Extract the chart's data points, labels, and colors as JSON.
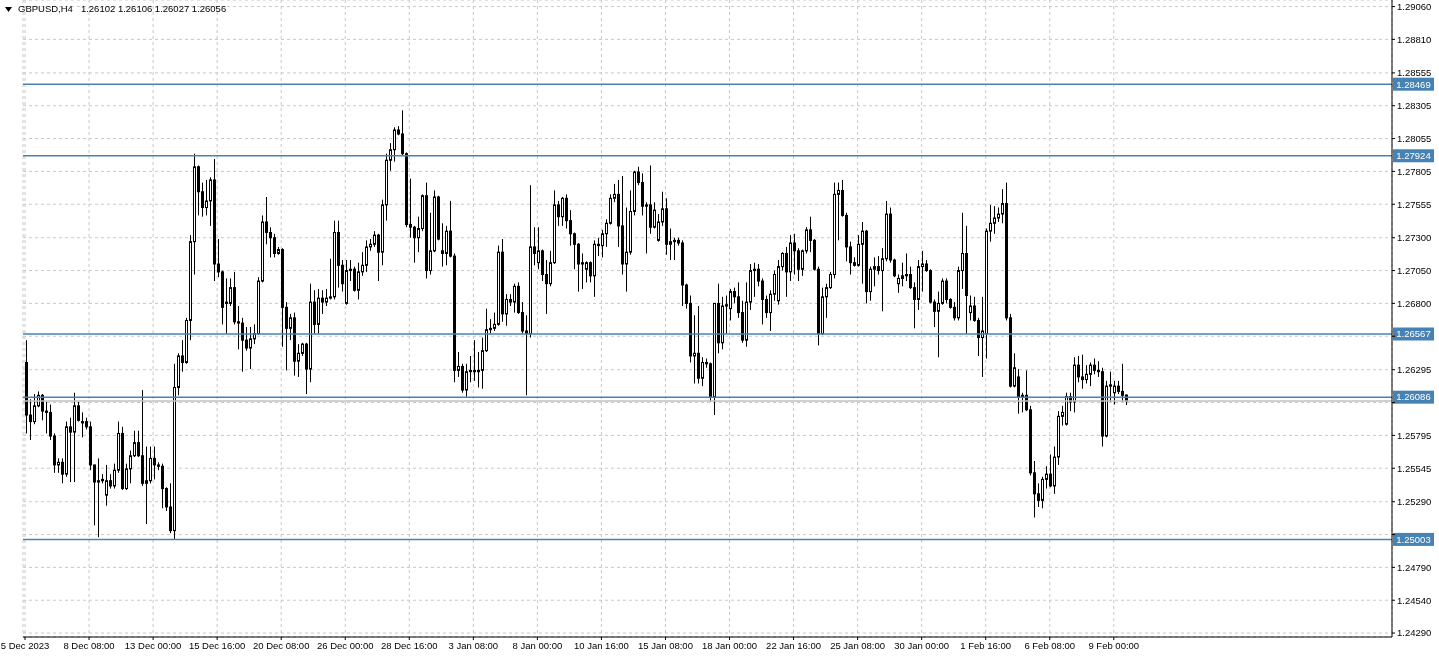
{
  "chart_data": {
    "type": "candlestick",
    "title": "GBPUSD,H4",
    "subtitle": "1.26102 1.26106 1.26027 1.26056",
    "color": "#000000",
    "categories": [
      "5 Dec 2023",
      null,
      null,
      null,
      null,
      null,
      null,
      null,
      null,
      null,
      null,
      null,
      null,
      null,
      null,
      null,
      "8 Dec 08:00",
      null,
      null,
      null,
      null,
      null,
      null,
      null,
      null,
      null,
      null,
      null,
      null,
      null,
      null,
      null,
      "13 Dec 00:00",
      null,
      null,
      null,
      null,
      null,
      null,
      null,
      null,
      null,
      null,
      null,
      null,
      null,
      null,
      null,
      "15 Dec 16:00",
      null,
      null,
      null,
      null,
      null,
      null,
      null,
      null,
      null,
      null,
      null,
      null,
      null,
      null,
      null,
      "20 Dec 08:00",
      null,
      null,
      null,
      null,
      null,
      null,
      null,
      null,
      null,
      null,
      null,
      null,
      null,
      null,
      null,
      "26 Dec 00:00",
      null,
      null,
      null,
      null,
      null,
      null,
      null,
      null,
      null,
      null,
      null,
      null,
      null,
      null,
      null,
      "28 Dec 16:00",
      null,
      null,
      null,
      null,
      null,
      null,
      null,
      null,
      null,
      null,
      null,
      null,
      null,
      null,
      null,
      "3 Jan 08:00",
      null,
      null,
      null,
      null,
      null,
      null,
      null,
      null,
      null,
      null,
      null,
      null,
      null,
      null,
      null,
      "8 Jan 00:00",
      null,
      null,
      null,
      null,
      null,
      null,
      null,
      null,
      null,
      null,
      null,
      null,
      null,
      null,
      null,
      "10 Jan 16:00",
      null,
      null,
      null,
      null,
      null,
      null,
      null,
      null,
      null,
      null,
      null,
      null,
      null,
      null,
      null,
      "15 Jan 08:00",
      null,
      null,
      null,
      null,
      null,
      null,
      null,
      null,
      null,
      null,
      null,
      null,
      null,
      null,
      null,
      "18 Jan 00:00",
      null,
      null,
      null,
      null,
      null,
      null,
      null,
      null,
      null,
      null,
      null,
      null,
      null,
      null,
      null,
      "22 Jan 16:00",
      null,
      null,
      null,
      null,
      null,
      null,
      null,
      null,
      null,
      null,
      null,
      null,
      null,
      null,
      null,
      "25 Jan 08:00",
      null,
      null,
      null,
      null,
      null,
      null,
      null,
      null,
      null,
      null,
      null,
      null,
      null,
      null,
      null,
      "30 Jan 00:00",
      null,
      null,
      null,
      null,
      null,
      null,
      null,
      null,
      null,
      null,
      null,
      null,
      null,
      null,
      null,
      "1 Feb 16:00",
      null,
      null,
      null,
      null,
      null,
      null,
      null,
      null,
      null,
      null,
      null,
      null,
      null,
      null,
      null,
      "6 Feb 08:00",
      null,
      null,
      null,
      null,
      null,
      null,
      null,
      null,
      null,
      null,
      null,
      null,
      null,
      null,
      null,
      "9 Feb 00:00",
      null,
      null,
      null,
      null,
      null,
      null,
      null,
      null,
      null,
      null,
      null,
      null,
      null,
      null,
      null,
      null,
      null,
      null,
      null,
      null,
      null,
      null,
      null,
      null,
      null,
      null,
      null,
      null,
      null,
      null,
      null,
      null,
      null,
      null,
      null,
      null,
      null,
      null,
      null,
      null,
      null,
      null,
      null,
      null,
      null,
      null,
      null,
      null,
      null,
      null,
      null,
      null,
      null,
      null,
      null,
      null,
      null,
      null,
      null,
      null,
      null,
      null,
      null,
      null,
      null,
      null,
      null,
      null,
      null
    ],
    "ohlc": [
      [
        1.2635,
        1.2652,
        1.2581,
        1.2595
      ],
      [
        1.2595,
        1.2607,
        1.2576,
        1.259
      ],
      [
        1.259,
        1.2611,
        1.2588,
        1.2602
      ],
      [
        1.2602,
        1.2613,
        1.2601,
        1.261
      ],
      [
        1.261,
        1.2611,
        1.2591,
        1.2598
      ],
      [
        1.2598,
        1.2605,
        1.2581,
        1.2597
      ],
      [
        1.2597,
        1.2603,
        1.2576,
        1.2579
      ],
      [
        1.2579,
        1.2581,
        1.2551,
        1.2557
      ],
      [
        1.2557,
        1.2562,
        1.2551,
        1.2559
      ],
      [
        1.2559,
        1.2562,
        1.2543,
        1.255
      ],
      [
        1.255,
        1.259,
        1.2548,
        1.2586
      ],
      [
        1.2586,
        1.2593,
        1.2544,
        1.2582
      ],
      [
        1.2582,
        1.2612,
        1.2544,
        1.2602
      ],
      [
        1.2602,
        1.2605,
        1.259,
        1.2591
      ],
      [
        1.2589,
        1.2597,
        1.2578,
        1.259
      ],
      [
        1.259,
        1.2593,
        1.2584,
        1.2586
      ],
      [
        1.2586,
        1.259,
        1.2553,
        1.2557
      ],
      [
        1.2557,
        1.2557,
        1.2511,
        1.2544
      ],
      [
        1.2544,
        1.2562,
        1.2502,
        1.2545
      ],
      [
        1.2545,
        1.255,
        1.2543,
        1.2546
      ],
      [
        1.2534,
        1.2557,
        1.2526,
        1.2545
      ],
      [
        1.2545,
        1.255,
        1.2539,
        1.2541
      ],
      [
        1.2541,
        1.2558,
        1.2539,
        1.2553
      ],
      [
        1.2553,
        1.259,
        1.2551,
        1.2581
      ],
      [
        1.2581,
        1.2586,
        1.2538,
        1.2539
      ],
      [
        1.2539,
        1.2558,
        1.2538,
        1.2554
      ],
      [
        1.2554,
        1.2568,
        1.2543,
        1.2564
      ],
      [
        1.2564,
        1.2583,
        1.2563,
        1.2574
      ],
      [
        1.2574,
        1.2583,
        1.2563,
        1.2564
      ],
      [
        1.2564,
        1.2614,
        1.2541,
        1.2543
      ],
      [
        1.2543,
        1.2571,
        1.2512,
        1.2545
      ],
      [
        1.2545,
        1.2571,
        1.2543,
        1.2562
      ],
      [
        1.2562,
        1.2571,
        1.2546,
        1.2557
      ],
      [
        1.2557,
        1.2559,
        1.2553,
        1.2556
      ],
      [
        1.2556,
        1.2558,
        1.2524,
        1.2539
      ],
      [
        1.2539,
        1.254,
        1.2522,
        1.2525
      ],
      [
        1.2525,
        1.2543,
        1.2505,
        1.2507
      ],
      [
        1.2507,
        1.2634,
        1.25,
        1.2616
      ],
      [
        1.2616,
        1.2642,
        1.261,
        1.264
      ],
      [
        1.264,
        1.2652,
        1.2628,
        1.2635
      ],
      [
        1.2635,
        1.2669,
        1.2634,
        1.2667
      ],
      [
        1.2667,
        1.2732,
        1.2652,
        1.2727
      ],
      [
        1.2727,
        1.2794,
        1.2702,
        1.2784
      ],
      [
        1.2784,
        1.2785,
        1.2747,
        1.2765
      ],
      [
        1.2765,
        1.2772,
        1.2746,
        1.2753
      ],
      [
        1.2753,
        1.2774,
        1.2747,
        1.2758
      ],
      [
        1.2758,
        1.2776,
        1.2739,
        1.2774
      ],
      [
        1.2774,
        1.279,
        1.2697,
        1.271
      ],
      [
        1.271,
        1.2729,
        1.27,
        1.2704
      ],
      [
        1.2704,
        1.2705,
        1.2664,
        1.2677
      ],
      [
        1.2681,
        1.2699,
        1.2657,
        1.268
      ],
      [
        1.268,
        1.2699,
        1.2678,
        1.2692
      ],
      [
        1.2692,
        1.2704,
        1.2664,
        1.2666
      ],
      [
        1.2666,
        1.2678,
        1.2645,
        1.2665
      ],
      [
        1.2665,
        1.2669,
        1.2628,
        1.2652
      ],
      [
        1.2652,
        1.2662,
        1.2644,
        1.2646
      ],
      [
        1.2646,
        1.2662,
        1.263,
        1.2653
      ],
      [
        1.2653,
        1.2664,
        1.2649,
        1.2657
      ],
      [
        1.2657,
        1.27,
        1.2656,
        1.2697
      ],
      [
        1.2697,
        1.2747,
        1.2696,
        1.2742
      ],
      [
        1.2742,
        1.2761,
        1.2725,
        1.2734
      ],
      [
        1.2734,
        1.2738,
        1.2715,
        1.273
      ],
      [
        1.273,
        1.2733,
        1.2715,
        1.2718
      ],
      [
        1.2718,
        1.2723,
        1.2717,
        1.2721
      ],
      [
        1.2721,
        1.2722,
        1.2647,
        1.2677
      ],
      [
        1.2677,
        1.2681,
        1.2629,
        1.2661
      ],
      [
        1.2661,
        1.2672,
        1.2652,
        1.2669
      ],
      [
        1.2669,
        1.2673,
        1.2625,
        1.2636
      ],
      [
        1.2636,
        1.2649,
        1.2624,
        1.2642
      ],
      [
        1.2642,
        1.265,
        1.264,
        1.2649
      ],
      [
        1.2649,
        1.265,
        1.2611,
        1.263
      ],
      [
        1.263,
        1.2695,
        1.262,
        1.2681
      ],
      [
        1.2681,
        1.269,
        1.2657,
        1.2664
      ],
      [
        1.2664,
        1.2691,
        1.2657,
        1.2684
      ],
      [
        1.2684,
        1.269,
        1.2672,
        1.2681
      ],
      [
        1.2681,
        1.2691,
        1.2678,
        1.2684
      ],
      [
        1.2684,
        1.2714,
        1.2683,
        1.2685
      ],
      [
        1.2685,
        1.2743,
        1.2683,
        1.2734
      ],
      [
        1.2734,
        1.2743,
        1.2692,
        1.2709
      ],
      [
        1.2709,
        1.2713,
        1.2689,
        1.2695
      ],
      [
        1.268,
        1.2713,
        1.2679,
        1.2705
      ],
      [
        1.2705,
        1.2713,
        1.2697,
        1.2706
      ],
      [
        1.2706,
        1.2708,
        1.2689,
        1.269
      ],
      [
        1.269,
        1.2711,
        1.2683,
        1.2704
      ],
      [
        1.2704,
        1.2719,
        1.2701,
        1.2709
      ],
      [
        1.2709,
        1.2728,
        1.2704,
        1.2723
      ],
      [
        1.2723,
        1.2729,
        1.272,
        1.2725
      ],
      [
        1.2725,
        1.2735,
        1.2723,
        1.2732
      ],
      [
        1.2732,
        1.2733,
        1.2697,
        1.2719
      ],
      [
        1.2719,
        1.2759,
        1.2709,
        1.2755
      ],
      [
        1.2755,
        1.2794,
        1.2743,
        1.2789
      ],
      [
        1.2789,
        1.2802,
        1.2781,
        1.2797
      ],
      [
        1.2797,
        1.2814,
        1.2788,
        1.2812
      ],
      [
        1.2812,
        1.2815,
        1.2808,
        1.2809
      ],
      [
        1.2809,
        1.2827,
        1.2793,
        1.2794
      ],
      [
        1.2794,
        1.2795,
        1.2738,
        1.274
      ],
      [
        1.274,
        1.2775,
        1.273,
        1.2738
      ],
      [
        1.2738,
        1.2739,
        1.2711,
        1.273
      ],
      [
        1.273,
        1.2746,
        1.2719,
        1.2737
      ],
      [
        1.2737,
        1.2763,
        1.2735,
        1.2762
      ],
      [
        1.2762,
        1.2772,
        1.2699,
        1.2705
      ],
      [
        1.2705,
        1.2749,
        1.2702,
        1.272
      ],
      [
        1.272,
        1.2766,
        1.2719,
        1.2761
      ],
      [
        1.2761,
        1.2762,
        1.2728,
        1.2729
      ],
      [
        1.272,
        1.2741,
        1.2708,
        1.2718
      ],
      [
        1.2718,
        1.2739,
        1.2709,
        1.2735
      ],
      [
        1.2735,
        1.2758,
        1.2715,
        1.2716
      ],
      [
        1.2716,
        1.2718,
        1.262,
        1.2629
      ],
      [
        1.2629,
        1.2643,
        1.2624,
        1.2632
      ],
      [
        1.2632,
        1.2634,
        1.2612,
        1.2614
      ],
      [
        1.2614,
        1.2634,
        1.2609,
        1.2628
      ],
      [
        1.2628,
        1.264,
        1.262,
        1.2629
      ],
      [
        1.2629,
        1.2652,
        1.2621,
        1.2628
      ],
      [
        1.2628,
        1.2643,
        1.2616,
        1.2629
      ],
      [
        1.2629,
        1.2654,
        1.2615,
        1.2644
      ],
      [
        1.2644,
        1.2676,
        1.2643,
        1.266
      ],
      [
        1.266,
        1.2668,
        1.2657,
        1.2661
      ],
      [
        1.2661,
        1.2673,
        1.2659,
        1.2664
      ],
      [
        1.2664,
        1.2724,
        1.2663,
        1.2719
      ],
      [
        1.2719,
        1.2729,
        1.2666,
        1.2672
      ],
      [
        1.2672,
        1.2687,
        1.2663,
        1.2683
      ],
      [
        1.2683,
        1.2687,
        1.2678,
        1.2681
      ],
      [
        1.2681,
        1.2695,
        1.2673,
        1.2693
      ],
      [
        1.2693,
        1.2696,
        1.2672,
        1.2673
      ],
      [
        1.2673,
        1.2681,
        1.2657,
        1.2659
      ],
      [
        1.2659,
        1.2671,
        1.261,
        1.2657
      ],
      [
        1.2657,
        1.277,
        1.2654,
        1.2723
      ],
      [
        1.2723,
        1.2738,
        1.2709,
        1.2718
      ],
      [
        1.2711,
        1.2738,
        1.2706,
        1.272
      ],
      [
        1.272,
        1.2721,
        1.2697,
        1.2702
      ],
      [
        1.2702,
        1.2713,
        1.2672,
        1.2695
      ],
      [
        1.2695,
        1.272,
        1.2693,
        1.2711
      ],
      [
        1.2711,
        1.2766,
        1.271,
        1.2755
      ],
      [
        1.2755,
        1.2758,
        1.2739,
        1.2746
      ],
      [
        1.2746,
        1.2761,
        1.2739,
        1.276
      ],
      [
        1.276,
        1.2763,
        1.2737,
        1.2743
      ],
      [
        1.2743,
        1.2751,
        1.2724,
        1.2733
      ],
      [
        1.2733,
        1.2734,
        1.2706,
        1.2725
      ],
      [
        1.2725,
        1.2726,
        1.2689,
        1.271
      ],
      [
        1.271,
        1.2718,
        1.2691,
        1.2711
      ],
      [
        1.2706,
        1.2712,
        1.2696,
        1.2711
      ],
      [
        1.2711,
        1.2712,
        1.2696,
        1.2701
      ],
      [
        1.2701,
        1.2728,
        1.2685,
        1.2725
      ],
      [
        1.2725,
        1.273,
        1.2716,
        1.2724
      ],
      [
        1.2724,
        1.2736,
        1.2715,
        1.2733
      ],
      [
        1.2733,
        1.2744,
        1.2723,
        1.2741
      ],
      [
        1.2741,
        1.2763,
        1.274,
        1.276
      ],
      [
        1.276,
        1.2771,
        1.2757,
        1.2763
      ],
      [
        1.2763,
        1.2774,
        1.2723,
        1.2739
      ],
      [
        1.2739,
        1.2777,
        1.2702,
        1.271
      ],
      [
        1.271,
        1.2753,
        1.2689,
        1.2719
      ],
      [
        1.2719,
        1.2766,
        1.2717,
        1.275
      ],
      [
        1.275,
        1.2781,
        1.2747,
        1.278
      ],
      [
        1.278,
        1.2784,
        1.277,
        1.2772
      ],
      [
        1.2772,
        1.2779,
        1.2747,
        1.2754
      ],
      [
        1.2754,
        1.2757,
        1.2718,
        1.2755
      ],
      [
        1.2755,
        1.2785,
        1.2733,
        1.2738
      ],
      [
        1.2738,
        1.2757,
        1.2737,
        1.2751
      ],
      [
        1.2728,
        1.2748,
        1.2727,
        1.2742
      ],
      [
        1.2742,
        1.2765,
        1.2739,
        1.2752
      ],
      [
        1.2752,
        1.276,
        1.2717,
        1.2725
      ],
      [
        1.2725,
        1.2737,
        1.2713,
        1.2727
      ],
      [
        1.2727,
        1.273,
        1.2713,
        1.2728
      ],
      [
        1.2728,
        1.273,
        1.2724,
        1.2726
      ],
      [
        1.2726,
        1.2728,
        1.2678,
        1.2694
      ],
      [
        1.2694,
        1.2695,
        1.2676,
        1.268
      ],
      [
        1.268,
        1.2686,
        1.2635,
        1.264
      ],
      [
        1.264,
        1.2671,
        1.2619,
        1.2642
      ],
      [
        1.2642,
        1.2678,
        1.2619,
        1.2623
      ],
      [
        1.2623,
        1.2639,
        1.2617,
        1.2635
      ],
      [
        1.2635,
        1.2638,
        1.2631,
        1.2634
      ],
      [
        1.2634,
        1.2635,
        1.2605,
        1.2609
      ],
      [
        1.2609,
        1.268,
        1.2595,
        1.268
      ],
      [
        1.268,
        1.2695,
        1.2642,
        1.265
      ],
      [
        1.265,
        1.2685,
        1.2645,
        1.2678
      ],
      [
        1.2678,
        1.2686,
        1.2657,
        1.2679
      ],
      [
        1.2676,
        1.2691,
        1.2667,
        1.2689
      ],
      [
        1.2689,
        1.2692,
        1.268,
        1.2685
      ],
      [
        1.2685,
        1.2696,
        1.2669,
        1.2673
      ],
      [
        1.2673,
        1.2682,
        1.265,
        1.2652
      ],
      [
        1.2652,
        1.2696,
        1.2647,
        1.2681
      ],
      [
        1.2681,
        1.271,
        1.2675,
        1.2705
      ],
      [
        1.2705,
        1.2711,
        1.2685,
        1.2706
      ],
      [
        1.2706,
        1.271,
        1.2693,
        1.2697
      ],
      [
        1.2697,
        1.2699,
        1.2664,
        1.2683
      ],
      [
        1.2683,
        1.2686,
        1.2669,
        1.2673
      ],
      [
        1.2673,
        1.269,
        1.2659,
        1.2687
      ],
      [
        1.2687,
        1.2705,
        1.2682,
        1.2702
      ],
      [
        1.2682,
        1.2713,
        1.2679,
        1.2708
      ],
      [
        1.2708,
        1.2719,
        1.2705,
        1.2718
      ],
      [
        1.2718,
        1.2723,
        1.2685,
        1.2704
      ],
      [
        1.2704,
        1.2732,
        1.2697,
        1.2726
      ],
      [
        1.2726,
        1.2733,
        1.2702,
        1.272
      ],
      [
        1.272,
        1.2722,
        1.2697,
        1.2706
      ],
      [
        1.2706,
        1.2721,
        1.2701,
        1.272
      ],
      [
        1.272,
        1.2738,
        1.2718,
        1.2736
      ],
      [
        1.2736,
        1.2746,
        1.2719,
        1.2728
      ],
      [
        1.2728,
        1.2729,
        1.2705,
        1.2706
      ],
      [
        1.2706,
        1.2708,
        1.2648,
        1.2657
      ],
      [
        1.2657,
        1.2692,
        1.2656,
        1.2685
      ],
      [
        1.2685,
        1.2695,
        1.2669,
        1.2692
      ],
      [
        1.2692,
        1.2704,
        1.2691,
        1.2702
      ],
      [
        1.2702,
        1.2772,
        1.2699,
        1.2763
      ],
      [
        1.2763,
        1.2772,
        1.2728,
        1.2766
      ],
      [
        1.2766,
        1.2774,
        1.2746,
        1.2747
      ],
      [
        1.2747,
        1.2749,
        1.2712,
        1.2723
      ],
      [
        1.2723,
        1.2727,
        1.2702,
        1.2711
      ],
      [
        1.2711,
        1.2715,
        1.2708,
        1.2709
      ],
      [
        1.2709,
        1.2732,
        1.2708,
        1.2725
      ],
      [
        1.2725,
        1.2742,
        1.2695,
        1.2735
      ],
      [
        1.2735,
        1.2736,
        1.268,
        1.2689
      ],
      [
        1.2689,
        1.2708,
        1.2682,
        1.2706
      ],
      [
        1.2706,
        1.2715,
        1.2693,
        1.2708
      ],
      [
        1.2708,
        1.2716,
        1.2702,
        1.2705
      ],
      [
        1.2705,
        1.2722,
        1.2674,
        1.2714
      ],
      [
        1.2714,
        1.2758,
        1.2712,
        1.2748
      ],
      [
        1.2748,
        1.2753,
        1.2711,
        1.2713
      ],
      [
        1.2713,
        1.2714,
        1.27,
        1.2701
      ],
      [
        1.2695,
        1.2702,
        1.2688,
        1.2699
      ],
      [
        1.2699,
        1.2711,
        1.2693,
        1.2701
      ],
      [
        1.2701,
        1.2718,
        1.2697,
        1.2702
      ],
      [
        1.2702,
        1.2708,
        1.2691,
        1.2692
      ],
      [
        1.2692,
        1.2696,
        1.2661,
        1.2683
      ],
      [
        1.2683,
        1.2713,
        1.2675,
        1.2708
      ],
      [
        1.2708,
        1.272,
        1.2689,
        1.271
      ],
      [
        1.271,
        1.2713,
        1.2704,
        1.2705
      ],
      [
        1.2705,
        1.2706,
        1.268,
        1.2681
      ],
      [
        1.2681,
        1.2683,
        1.2662,
        1.2674
      ],
      [
        1.2674,
        1.2689,
        1.2639,
        1.268
      ],
      [
        1.268,
        1.2699,
        1.2679,
        1.2697
      ],
      [
        1.2697,
        1.2699,
        1.268,
        1.2683
      ],
      [
        1.2683,
        1.2684,
        1.2676,
        1.2677
      ],
      [
        1.2677,
        1.2681,
        1.2667,
        1.2669
      ],
      [
        1.2669,
        1.2708,
        1.2667,
        1.2705
      ],
      [
        1.2705,
        1.2749,
        1.2691,
        1.2718
      ],
      [
        1.2718,
        1.2739,
        1.2657,
        1.2686
      ],
      [
        1.2673,
        1.2686,
        1.2667,
        1.2678
      ],
      [
        1.2678,
        1.2685,
        1.2666,
        1.2667
      ],
      [
        1.2667,
        1.2669,
        1.264,
        1.2654
      ],
      [
        1.2654,
        1.2685,
        1.2624,
        1.2659
      ],
      [
        1.2657,
        1.2737,
        1.2638,
        1.2735
      ],
      [
        1.2735,
        1.2755,
        1.2727,
        1.2741
      ],
      [
        1.2741,
        1.2754,
        1.2733,
        1.2745
      ],
      [
        1.2745,
        1.2753,
        1.2742,
        1.2748
      ],
      [
        1.2748,
        1.2767,
        1.2741,
        1.2756
      ],
      [
        1.2756,
        1.2772,
        1.2667,
        1.2669
      ],
      [
        1.2669,
        1.2672,
        1.2616,
        1.2617
      ],
      [
        1.2617,
        1.2642,
        1.2616,
        1.2631
      ],
      [
        1.2624,
        1.263,
        1.2596,
        1.2609
      ],
      [
        1.2609,
        1.2612,
        1.2597,
        1.261
      ],
      [
        1.261,
        1.2629,
        1.2598,
        1.2599
      ],
      [
        1.2599,
        1.2602,
        1.2549,
        1.2551
      ],
      [
        1.2551,
        1.256,
        1.2517,
        1.2535
      ],
      [
        1.2535,
        1.2543,
        1.2525,
        1.253
      ],
      [
        1.253,
        1.2548,
        1.2524,
        1.2546
      ],
      [
        1.2546,
        1.2556,
        1.2539,
        1.255
      ],
      [
        1.255,
        1.2565,
        1.254,
        1.2541
      ],
      [
        1.2541,
        1.2571,
        1.2535,
        1.2563
      ],
      [
        1.2563,
        1.2598,
        1.2557,
        1.2594
      ],
      [
        1.2594,
        1.2602,
        1.2587,
        1.2597
      ],
      [
        1.2588,
        1.2612,
        1.2587,
        1.2609
      ],
      [
        1.2609,
        1.2612,
        1.2598,
        1.2605
      ],
      [
        1.2605,
        1.2639,
        1.2597,
        1.2633
      ],
      [
        1.2633,
        1.264,
        1.262,
        1.2624
      ],
      [
        1.2624,
        1.2641,
        1.2615,
        1.2622
      ],
      [
        1.2622,
        1.2633,
        1.2619,
        1.2626
      ],
      [
        1.2626,
        1.2635,
        1.2617,
        1.2633
      ],
      [
        1.2633,
        1.2638,
        1.2626,
        1.2629
      ],
      [
        1.2629,
        1.2636,
        1.2624,
        1.2628
      ],
      [
        1.2628,
        1.2631,
        1.2571,
        1.2579
      ],
      [
        1.2579,
        1.2621,
        1.2578,
        1.2617
      ],
      [
        1.2617,
        1.2628,
        1.2605,
        1.2618
      ],
      [
        1.2612,
        1.2621,
        1.2603,
        1.2617
      ],
      [
        1.2617,
        1.2621,
        1.2611,
        1.2613
      ],
      [
        1.2613,
        1.2634,
        1.2605,
        1.261
      ],
      [
        1.26102,
        1.26106,
        1.26027,
        1.26056
      ],
      null,
      null,
      null,
      null,
      null,
      null,
      null,
      null,
      null,
      null,
      null,
      null,
      null,
      null,
      null,
      null,
      null,
      null,
      null,
      null,
      null,
      null,
      null,
      null,
      null,
      null,
      null,
      null,
      null,
      null,
      null,
      null,
      null,
      null,
      null,
      null,
      null,
      null,
      null,
      null,
      null,
      null,
      null,
      null,
      null,
      null,
      null,
      null,
      null,
      null,
      null,
      null,
      null,
      null,
      null,
      null,
      null,
      null,
      null,
      null,
      null,
      null,
      null,
      null,
      null,
      null
    ],
    "ylim": [
      1.2426,
      1.2911
    ],
    "yticks": [
      {
        "value": 1.2906,
        "label": "1.29060"
      },
      {
        "value": 1.2881,
        "label": "1.28810"
      },
      {
        "value": 1.28555,
        "label": "1.28555"
      },
      {
        "value": 1.28305,
        "label": "1.28305"
      },
      {
        "value": 1.28055,
        "label": "1.28055"
      },
      {
        "value": 1.27805,
        "label": "1.27805"
      },
      {
        "value": 1.27555,
        "label": "1.27555"
      },
      {
        "value": 1.273,
        "label": "1.27300"
      },
      {
        "value": 1.2705,
        "label": "1.27050"
      },
      {
        "value": 1.268,
        "label": "1.26800"
      },
      {
        "value": 1.2655,
        "label": null
      },
      {
        "value": 1.26295,
        "label": "1.26295"
      },
      {
        "value": 1.26045,
        "label": null
      },
      {
        "value": 1.25795,
        "label": "1.25795"
      },
      {
        "value": 1.25545,
        "label": "1.25545"
      },
      {
        "value": 1.2529,
        "label": "1.25290"
      },
      {
        "value": 1.2504,
        "label": null
      },
      {
        "value": 1.2479,
        "label": "1.24790"
      },
      {
        "value": 1.2454,
        "label": "1.24540"
      },
      {
        "value": 1.2429,
        "label": "1.24290"
      }
    ],
    "grid": true,
    "ref_lines": [
      {
        "axis": "y",
        "value": 1.26056,
        "color": "#c0c0c0"
      },
      {
        "axis": "y",
        "value": 1.28469,
        "label": "1.28469",
        "color": "#4682b4"
      },
      {
        "axis": "y",
        "value": 1.27924,
        "label": "1.27924",
        "color": "#4682b4"
      },
      {
        "axis": "y",
        "value": 1.26567,
        "label": "1.26567",
        "color": "#4682b4"
      },
      {
        "axis": "y",
        "value": 1.26086,
        "label": "1.26086",
        "color": "#4682b4"
      },
      {
        "axis": "y",
        "value": 1.25003,
        "label": "1.25003",
        "color": "#4682b4"
      }
    ]
  }
}
